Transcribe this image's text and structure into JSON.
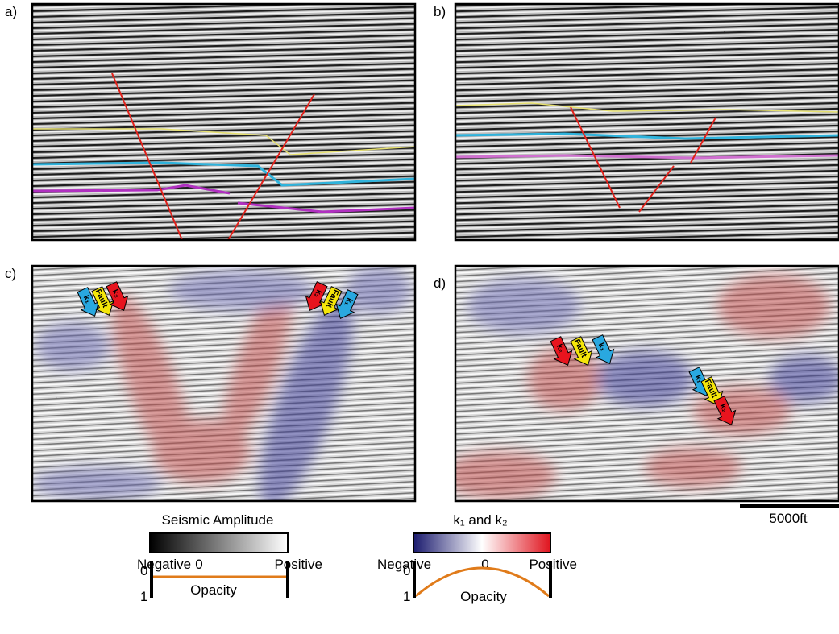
{
  "panels": [
    {
      "label": "a)"
    },
    {
      "label": "b)"
    },
    {
      "label": "c)",
      "arrows": [
        "k₁",
        "Fault",
        "k₂",
        "k₂",
        "Fault",
        "k₁"
      ]
    },
    {
      "label": "d)",
      "arrows": [
        "k₂",
        "Fault",
        "k₁",
        "k₁",
        "Fault",
        "k₂"
      ]
    }
  ],
  "legend": {
    "amplitude": {
      "title": "Seismic Amplitude",
      "negative": "Negative",
      "zero": "0",
      "positive": "Positive",
      "opacity_top": "0",
      "opacity_bottom": "1",
      "opacity": "Opacity"
    },
    "curvature": {
      "title": "k₁ and k₂",
      "negative": "Negative",
      "zero": "0",
      "positive": "Positive",
      "opacity_top": "0",
      "opacity_bottom": "1",
      "opacity": "Opacity"
    }
  },
  "scale_bar": "5000ft"
}
